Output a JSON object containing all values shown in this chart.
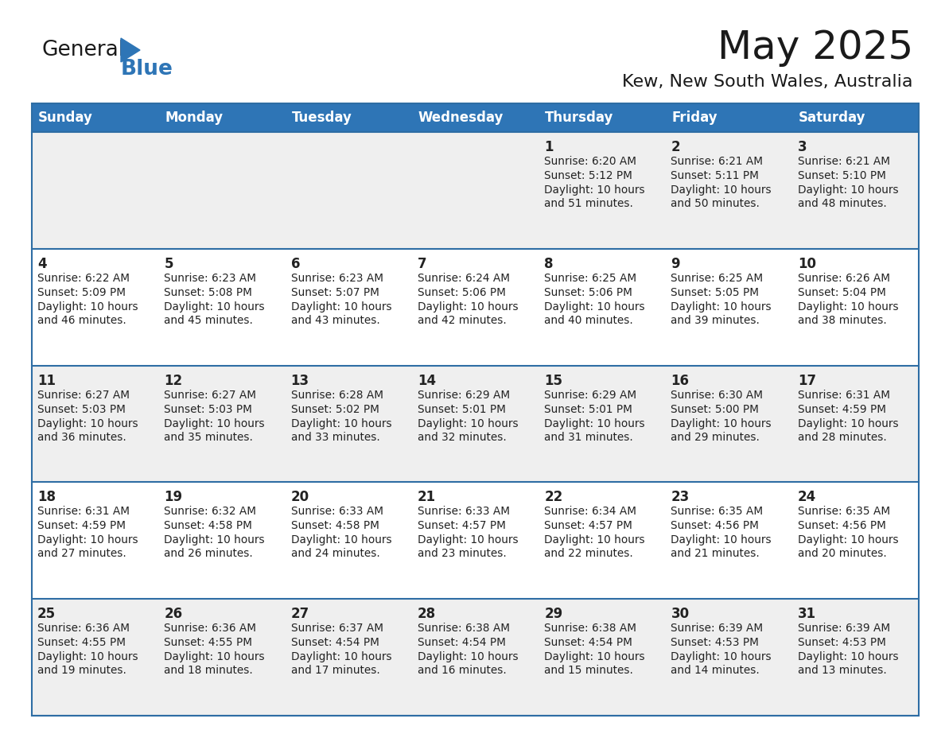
{
  "title": "May 2025",
  "subtitle": "Kew, New South Wales, Australia",
  "header_color": "#2E75B6",
  "header_text_color": "#FFFFFF",
  "day_names": [
    "Sunday",
    "Monday",
    "Tuesday",
    "Wednesday",
    "Thursday",
    "Friday",
    "Saturday"
  ],
  "calendar": [
    [
      null,
      null,
      null,
      null,
      {
        "day": "1",
        "sunrise": "6:20 AM",
        "sunset": "5:12 PM",
        "daylight_line1": "Daylight: 10 hours",
        "daylight_line2": "and 51 minutes."
      },
      {
        "day": "2",
        "sunrise": "6:21 AM",
        "sunset": "5:11 PM",
        "daylight_line1": "Daylight: 10 hours",
        "daylight_line2": "and 50 minutes."
      },
      {
        "day": "3",
        "sunrise": "6:21 AM",
        "sunset": "5:10 PM",
        "daylight_line1": "Daylight: 10 hours",
        "daylight_line2": "and 48 minutes."
      }
    ],
    [
      {
        "day": "4",
        "sunrise": "6:22 AM",
        "sunset": "5:09 PM",
        "daylight_line1": "Daylight: 10 hours",
        "daylight_line2": "and 46 minutes."
      },
      {
        "day": "5",
        "sunrise": "6:23 AM",
        "sunset": "5:08 PM",
        "daylight_line1": "Daylight: 10 hours",
        "daylight_line2": "and 45 minutes."
      },
      {
        "day": "6",
        "sunrise": "6:23 AM",
        "sunset": "5:07 PM",
        "daylight_line1": "Daylight: 10 hours",
        "daylight_line2": "and 43 minutes."
      },
      {
        "day": "7",
        "sunrise": "6:24 AM",
        "sunset": "5:06 PM",
        "daylight_line1": "Daylight: 10 hours",
        "daylight_line2": "and 42 minutes."
      },
      {
        "day": "8",
        "sunrise": "6:25 AM",
        "sunset": "5:06 PM",
        "daylight_line1": "Daylight: 10 hours",
        "daylight_line2": "and 40 minutes."
      },
      {
        "day": "9",
        "sunrise": "6:25 AM",
        "sunset": "5:05 PM",
        "daylight_line1": "Daylight: 10 hours",
        "daylight_line2": "and 39 minutes."
      },
      {
        "day": "10",
        "sunrise": "6:26 AM",
        "sunset": "5:04 PM",
        "daylight_line1": "Daylight: 10 hours",
        "daylight_line2": "and 38 minutes."
      }
    ],
    [
      {
        "day": "11",
        "sunrise": "6:27 AM",
        "sunset": "5:03 PM",
        "daylight_line1": "Daylight: 10 hours",
        "daylight_line2": "and 36 minutes."
      },
      {
        "day": "12",
        "sunrise": "6:27 AM",
        "sunset": "5:03 PM",
        "daylight_line1": "Daylight: 10 hours",
        "daylight_line2": "and 35 minutes."
      },
      {
        "day": "13",
        "sunrise": "6:28 AM",
        "sunset": "5:02 PM",
        "daylight_line1": "Daylight: 10 hours",
        "daylight_line2": "and 33 minutes."
      },
      {
        "day": "14",
        "sunrise": "6:29 AM",
        "sunset": "5:01 PM",
        "daylight_line1": "Daylight: 10 hours",
        "daylight_line2": "and 32 minutes."
      },
      {
        "day": "15",
        "sunrise": "6:29 AM",
        "sunset": "5:01 PM",
        "daylight_line1": "Daylight: 10 hours",
        "daylight_line2": "and 31 minutes."
      },
      {
        "day": "16",
        "sunrise": "6:30 AM",
        "sunset": "5:00 PM",
        "daylight_line1": "Daylight: 10 hours",
        "daylight_line2": "and 29 minutes."
      },
      {
        "day": "17",
        "sunrise": "6:31 AM",
        "sunset": "4:59 PM",
        "daylight_line1": "Daylight: 10 hours",
        "daylight_line2": "and 28 minutes."
      }
    ],
    [
      {
        "day": "18",
        "sunrise": "6:31 AM",
        "sunset": "4:59 PM",
        "daylight_line1": "Daylight: 10 hours",
        "daylight_line2": "and 27 minutes."
      },
      {
        "day": "19",
        "sunrise": "6:32 AM",
        "sunset": "4:58 PM",
        "daylight_line1": "Daylight: 10 hours",
        "daylight_line2": "and 26 minutes."
      },
      {
        "day": "20",
        "sunrise": "6:33 AM",
        "sunset": "4:58 PM",
        "daylight_line1": "Daylight: 10 hours",
        "daylight_line2": "and 24 minutes."
      },
      {
        "day": "21",
        "sunrise": "6:33 AM",
        "sunset": "4:57 PM",
        "daylight_line1": "Daylight: 10 hours",
        "daylight_line2": "and 23 minutes."
      },
      {
        "day": "22",
        "sunrise": "6:34 AM",
        "sunset": "4:57 PM",
        "daylight_line1": "Daylight: 10 hours",
        "daylight_line2": "and 22 minutes."
      },
      {
        "day": "23",
        "sunrise": "6:35 AM",
        "sunset": "4:56 PM",
        "daylight_line1": "Daylight: 10 hours",
        "daylight_line2": "and 21 minutes."
      },
      {
        "day": "24",
        "sunrise": "6:35 AM",
        "sunset": "4:56 PM",
        "daylight_line1": "Daylight: 10 hours",
        "daylight_line2": "and 20 minutes."
      }
    ],
    [
      {
        "day": "25",
        "sunrise": "6:36 AM",
        "sunset": "4:55 PM",
        "daylight_line1": "Daylight: 10 hours",
        "daylight_line2": "and 19 minutes."
      },
      {
        "day": "26",
        "sunrise": "6:36 AM",
        "sunset": "4:55 PM",
        "daylight_line1": "Daylight: 10 hours",
        "daylight_line2": "and 18 minutes."
      },
      {
        "day": "27",
        "sunrise": "6:37 AM",
        "sunset": "4:54 PM",
        "daylight_line1": "Daylight: 10 hours",
        "daylight_line2": "and 17 minutes."
      },
      {
        "day": "28",
        "sunrise": "6:38 AM",
        "sunset": "4:54 PM",
        "daylight_line1": "Daylight: 10 hours",
        "daylight_line2": "and 16 minutes."
      },
      {
        "day": "29",
        "sunrise": "6:38 AM",
        "sunset": "4:54 PM",
        "daylight_line1": "Daylight: 10 hours",
        "daylight_line2": "and 15 minutes."
      },
      {
        "day": "30",
        "sunrise": "6:39 AM",
        "sunset": "4:53 PM",
        "daylight_line1": "Daylight: 10 hours",
        "daylight_line2": "and 14 minutes."
      },
      {
        "day": "31",
        "sunrise": "6:39 AM",
        "sunset": "4:53 PM",
        "daylight_line1": "Daylight: 10 hours",
        "daylight_line2": "and 13 minutes."
      }
    ]
  ],
  "logo_general_color": "#1a1a1a",
  "logo_blue_color": "#2E75B6",
  "border_line_color": "#2E6DA4",
  "cell_text_color": "#222222",
  "title_color": "#1a1a1a",
  "subtitle_color": "#1a1a1a",
  "row_bg_colors": [
    "#EFEFEF",
    "#FFFFFF",
    "#EFEFEF",
    "#FFFFFF",
    "#EFEFEF"
  ]
}
